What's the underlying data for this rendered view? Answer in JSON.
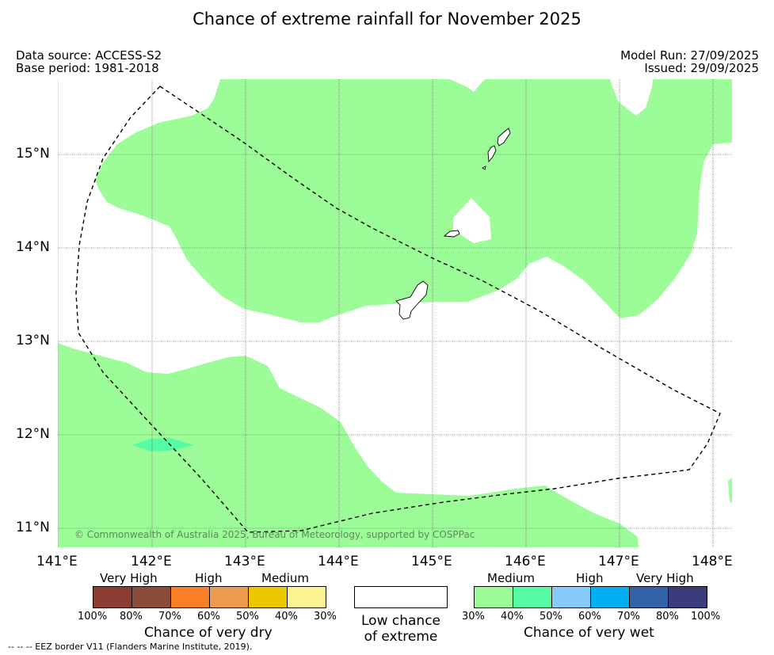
{
  "title": "Chance of extreme rainfall for November 2025",
  "data_source": "Data source: ACCESS-S2",
  "base_period": "Base period: 1981-2018",
  "model_run": "Model Run: 27/09/2025",
  "issued": "Issued: 29/09/2025",
  "copyright": "© Commonwealth of Australia 2025, Bureau of Meteorology, supported by COSPPac",
  "lat_labels": [
    "15°N",
    "14°N",
    "13°N",
    "12°N",
    "11°N"
  ],
  "lon_labels": [
    "141°E",
    "142°E",
    "143°E",
    "144°E",
    "145°E",
    "146°E",
    "147°E",
    "148°E"
  ],
  "colors": {
    "wet_medium": "#9cfc98",
    "wet_40_50": "#55fca4",
    "wet_50_60": "#87cbfa",
    "wet_60_70": "#00b0f0",
    "wet_70_80": "#3462a8",
    "wet_80_100": "#3c3c7c",
    "dry_80_100": "#8c3c33",
    "dry_70_80": "#8c4c3c",
    "dry_60_70": "#fc8028",
    "dry_50_60": "#ec9c4c",
    "dry_40_50": "#ecc800",
    "dry_30_40": "#fcf490"
  },
  "legend": {
    "dry": {
      "headers": [
        "Very High",
        "High",
        "Medium"
      ],
      "ticks": [
        "100%",
        "80%",
        "70%",
        "60%",
        "50%",
        "40%",
        "30%"
      ],
      "title": "Chance of very dry"
    },
    "low": {
      "line1": "Low chance",
      "line2": "of extreme"
    },
    "wet": {
      "headers": [
        "Medium",
        "High",
        "Very High"
      ],
      "ticks": [
        "30%",
        "40%",
        "50%",
        "60%",
        "70%",
        "80%",
        "100%"
      ],
      "title": "Chance of very wet"
    }
  },
  "eez_note": "--  --  -- EEZ border V11 (Flanders Marine Institute, 2019)."
}
